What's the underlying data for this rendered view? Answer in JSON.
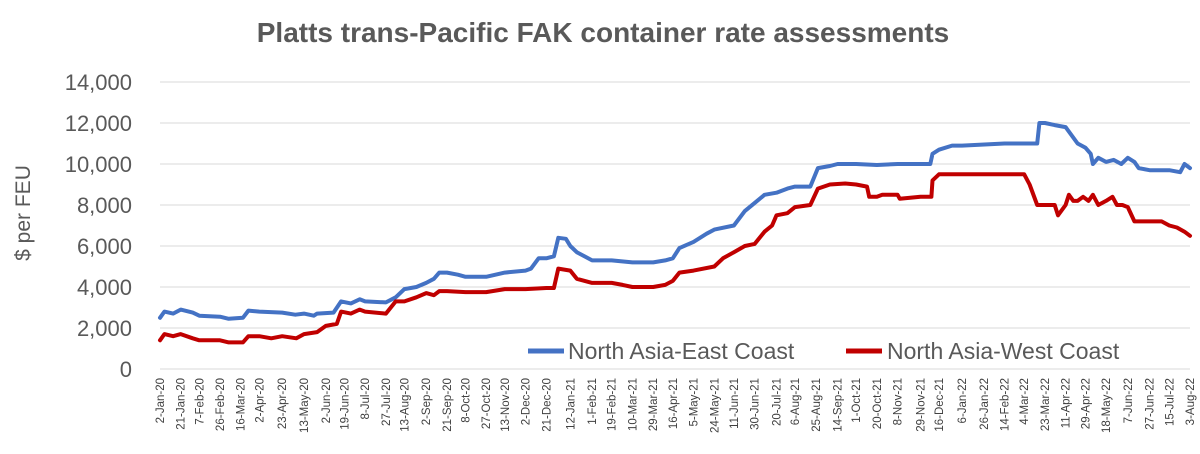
{
  "chart_data": {
    "type": "line",
    "title": "Platts trans-Pacific FAK container rate assessments",
    "ylabel": "$ per FEU",
    "xlabel": "",
    "ylim": [
      0,
      14000
    ],
    "y_ticks": [
      "0",
      "2,000",
      "4,000",
      "6,000",
      "8,000",
      "10,000",
      "12,000",
      "14,000"
    ],
    "y_tick_values": [
      0,
      2000,
      4000,
      6000,
      8000,
      10000,
      12000,
      14000
    ],
    "x_range": [
      "2020-01-02",
      "2022-08-03"
    ],
    "x_ticks": [
      {
        "label": "2-Jan-20",
        "date": "2020-01-02"
      },
      {
        "label": "21-Jan-20",
        "date": "2020-01-21"
      },
      {
        "label": "7-Feb-20",
        "date": "2020-02-07"
      },
      {
        "label": "26-Feb-20",
        "date": "2020-02-26"
      },
      {
        "label": "16-Mar-20",
        "date": "2020-03-16"
      },
      {
        "label": "2-Apr-20",
        "date": "2020-04-02"
      },
      {
        "label": "23-Apr-20",
        "date": "2020-04-23"
      },
      {
        "label": "13-May-20",
        "date": "2020-05-13"
      },
      {
        "label": "2-Jun-20",
        "date": "2020-06-02"
      },
      {
        "label": "19-Jun-20",
        "date": "2020-06-19"
      },
      {
        "label": "8-Jul-20",
        "date": "2020-07-08"
      },
      {
        "label": "27-Jul-20",
        "date": "2020-07-27"
      },
      {
        "label": "13-Aug-20",
        "date": "2020-08-13"
      },
      {
        "label": "2-Sep-20",
        "date": "2020-09-02"
      },
      {
        "label": "21-Sep-20",
        "date": "2020-09-21"
      },
      {
        "label": "8-Oct-20",
        "date": "2020-10-08"
      },
      {
        "label": "27-Oct-20",
        "date": "2020-10-27"
      },
      {
        "label": "13-Nov-20",
        "date": "2020-11-13"
      },
      {
        "label": "2-Dec-20",
        "date": "2020-12-02"
      },
      {
        "label": "21-Dec-20",
        "date": "2020-12-21"
      },
      {
        "label": "12-Jan-21",
        "date": "2021-01-12"
      },
      {
        "label": "1-Feb-21",
        "date": "2021-02-01"
      },
      {
        "label": "19-Feb-21",
        "date": "2021-02-19"
      },
      {
        "label": "10-Mar-21",
        "date": "2021-03-10"
      },
      {
        "label": "29-Mar-21",
        "date": "2021-03-29"
      },
      {
        "label": "16-Apr-21",
        "date": "2021-04-16"
      },
      {
        "label": "5-May-21",
        "date": "2021-05-05"
      },
      {
        "label": "24-May-21",
        "date": "2021-05-24"
      },
      {
        "label": "11-Jun-21",
        "date": "2021-06-11"
      },
      {
        "label": "30-Jun-21",
        "date": "2021-06-30"
      },
      {
        "label": "20-Jul-21",
        "date": "2021-07-20"
      },
      {
        "label": "6-Aug-21",
        "date": "2021-08-06"
      },
      {
        "label": "25-Aug-21",
        "date": "2021-08-25"
      },
      {
        "label": "14-Sep-21",
        "date": "2021-09-14"
      },
      {
        "label": "1-Oct-21",
        "date": "2021-10-01"
      },
      {
        "label": "20-Oct-21",
        "date": "2021-10-20"
      },
      {
        "label": "8-Nov-21",
        "date": "2021-11-08"
      },
      {
        "label": "29-Nov-21",
        "date": "2021-11-29"
      },
      {
        "label": "16-Dec-21",
        "date": "2021-12-16"
      },
      {
        "label": "6-Jan-22",
        "date": "2022-01-06"
      },
      {
        "label": "26-Jan-22",
        "date": "2022-01-26"
      },
      {
        "label": "14-Feb-22",
        "date": "2022-02-14"
      },
      {
        "label": "4-Mar-22",
        "date": "2022-03-04"
      },
      {
        "label": "23-Mar-22",
        "date": "2022-03-23"
      },
      {
        "label": "11-Apr-22",
        "date": "2022-04-11"
      },
      {
        "label": "29-Apr-22",
        "date": "2022-04-29"
      },
      {
        "label": "18-May-22",
        "date": "2022-05-18"
      },
      {
        "label": "7-Jun-22",
        "date": "2022-06-07"
      },
      {
        "label": "27-Jun-22",
        "date": "2022-06-27"
      },
      {
        "label": "15-Jul-22",
        "date": "2022-07-15"
      },
      {
        "label": "3-Aug-22",
        "date": "2022-08-03"
      }
    ],
    "grid": "horizontal",
    "legend_position": "bottom-right",
    "series": [
      {
        "name": "North Asia-East Coast",
        "color": "#4472c4",
        "points": [
          [
            "2020-01-02",
            2500
          ],
          [
            "2020-01-06",
            2800
          ],
          [
            "2020-01-14",
            2700
          ],
          [
            "2020-01-21",
            2900
          ],
          [
            "2020-02-01",
            2750
          ],
          [
            "2020-02-07",
            2600
          ],
          [
            "2020-02-26",
            2550
          ],
          [
            "2020-03-05",
            2450
          ],
          [
            "2020-03-18",
            2500
          ],
          [
            "2020-03-23",
            2850
          ],
          [
            "2020-04-02",
            2800
          ],
          [
            "2020-04-23",
            2750
          ],
          [
            "2020-05-05",
            2650
          ],
          [
            "2020-05-13",
            2700
          ],
          [
            "2020-05-22",
            2600
          ],
          [
            "2020-05-25",
            2700
          ],
          [
            "2020-06-09",
            2750
          ],
          [
            "2020-06-16",
            3300
          ],
          [
            "2020-06-25",
            3200
          ],
          [
            "2020-07-03",
            3400
          ],
          [
            "2020-07-08",
            3300
          ],
          [
            "2020-07-27",
            3250
          ],
          [
            "2020-08-05",
            3500
          ],
          [
            "2020-08-13",
            3900
          ],
          [
            "2020-08-24",
            4000
          ],
          [
            "2020-09-02",
            4200
          ],
          [
            "2020-09-09",
            4400
          ],
          [
            "2020-09-14",
            4700
          ],
          [
            "2020-09-21",
            4700
          ],
          [
            "2020-10-01",
            4600
          ],
          [
            "2020-10-08",
            4500
          ],
          [
            "2020-10-27",
            4500
          ],
          [
            "2020-11-13",
            4700
          ],
          [
            "2020-12-02",
            4800
          ],
          [
            "2020-12-07",
            4900
          ],
          [
            "2020-12-14",
            5400
          ],
          [
            "2020-12-21",
            5400
          ],
          [
            "2020-12-28",
            5500
          ],
          [
            "2021-01-01",
            6400
          ],
          [
            "2021-01-08",
            6350
          ],
          [
            "2021-01-12",
            6000
          ],
          [
            "2021-01-18",
            5700
          ],
          [
            "2021-01-25",
            5500
          ],
          [
            "2021-02-01",
            5300
          ],
          [
            "2021-02-19",
            5300
          ],
          [
            "2021-03-10",
            5200
          ],
          [
            "2021-03-29",
            5200
          ],
          [
            "2021-04-09",
            5300
          ],
          [
            "2021-04-16",
            5400
          ],
          [
            "2021-04-22",
            5900
          ],
          [
            "2021-05-05",
            6200
          ],
          [
            "2021-05-17",
            6600
          ],
          [
            "2021-05-24",
            6800
          ],
          [
            "2021-06-11",
            7000
          ],
          [
            "2021-06-21",
            7700
          ],
          [
            "2021-06-30",
            8100
          ],
          [
            "2021-07-09",
            8500
          ],
          [
            "2021-07-20",
            8600
          ],
          [
            "2021-07-30",
            8800
          ],
          [
            "2021-08-06",
            8900
          ],
          [
            "2021-08-20",
            8900
          ],
          [
            "2021-08-27",
            9800
          ],
          [
            "2021-09-07",
            9900
          ],
          [
            "2021-09-14",
            10000
          ],
          [
            "2021-10-01",
            10000
          ],
          [
            "2021-10-20",
            9950
          ],
          [
            "2021-11-08",
            10000
          ],
          [
            "2021-11-29",
            10000
          ],
          [
            "2021-12-08",
            10000
          ],
          [
            "2021-12-10",
            10500
          ],
          [
            "2021-12-16",
            10700
          ],
          [
            "2021-12-28",
            10900
          ],
          [
            "2022-01-06",
            10900
          ],
          [
            "2022-02-14",
            11000
          ],
          [
            "2022-03-04",
            11000
          ],
          [
            "2022-03-16",
            11000
          ],
          [
            "2022-03-18",
            12000
          ],
          [
            "2022-03-23",
            12000
          ],
          [
            "2022-04-01",
            11900
          ],
          [
            "2022-04-11",
            11800
          ],
          [
            "2022-04-22",
            11000
          ],
          [
            "2022-04-29",
            10800
          ],
          [
            "2022-05-04",
            10500
          ],
          [
            "2022-05-06",
            10000
          ],
          [
            "2022-05-11",
            10300
          ],
          [
            "2022-05-18",
            10100
          ],
          [
            "2022-05-25",
            10200
          ],
          [
            "2022-06-01",
            10000
          ],
          [
            "2022-06-07",
            10300
          ],
          [
            "2022-06-13",
            10100
          ],
          [
            "2022-06-17",
            9800
          ],
          [
            "2022-06-27",
            9700
          ],
          [
            "2022-07-15",
            9700
          ],
          [
            "2022-07-25",
            9600
          ],
          [
            "2022-07-29",
            10000
          ],
          [
            "2022-08-03",
            9800
          ]
        ]
      },
      {
        "name": "North Asia-West Coast",
        "color": "#c00000",
        "points": [
          [
            "2020-01-02",
            1400
          ],
          [
            "2020-01-06",
            1700
          ],
          [
            "2020-01-14",
            1600
          ],
          [
            "2020-01-21",
            1700
          ],
          [
            "2020-02-01",
            1500
          ],
          [
            "2020-02-07",
            1400
          ],
          [
            "2020-02-26",
            1400
          ],
          [
            "2020-03-05",
            1300
          ],
          [
            "2020-03-18",
            1300
          ],
          [
            "2020-03-23",
            1600
          ],
          [
            "2020-04-02",
            1600
          ],
          [
            "2020-04-13",
            1500
          ],
          [
            "2020-04-23",
            1600
          ],
          [
            "2020-05-06",
            1500
          ],
          [
            "2020-05-13",
            1700
          ],
          [
            "2020-05-25",
            1800
          ],
          [
            "2020-06-02",
            2100
          ],
          [
            "2020-06-12",
            2200
          ],
          [
            "2020-06-16",
            2800
          ],
          [
            "2020-06-25",
            2700
          ],
          [
            "2020-07-03",
            2900
          ],
          [
            "2020-07-08",
            2800
          ],
          [
            "2020-07-27",
            2700
          ],
          [
            "2020-08-05",
            3300
          ],
          [
            "2020-08-13",
            3300
          ],
          [
            "2020-08-24",
            3500
          ],
          [
            "2020-09-02",
            3700
          ],
          [
            "2020-09-09",
            3600
          ],
          [
            "2020-09-14",
            3800
          ],
          [
            "2020-09-21",
            3800
          ],
          [
            "2020-10-08",
            3750
          ],
          [
            "2020-10-27",
            3750
          ],
          [
            "2020-11-13",
            3900
          ],
          [
            "2020-12-02",
            3900
          ],
          [
            "2020-12-21",
            3950
          ],
          [
            "2020-12-28",
            3950
          ],
          [
            "2021-01-01",
            4900
          ],
          [
            "2021-01-12",
            4800
          ],
          [
            "2021-01-18",
            4400
          ],
          [
            "2021-02-01",
            4200
          ],
          [
            "2021-02-19",
            4200
          ],
          [
            "2021-03-01",
            4100
          ],
          [
            "2021-03-10",
            4000
          ],
          [
            "2021-03-29",
            4000
          ],
          [
            "2021-04-09",
            4100
          ],
          [
            "2021-04-16",
            4300
          ],
          [
            "2021-04-22",
            4700
          ],
          [
            "2021-05-05",
            4800
          ],
          [
            "2021-05-24",
            5000
          ],
          [
            "2021-06-01",
            5400
          ],
          [
            "2021-06-11",
            5700
          ],
          [
            "2021-06-21",
            6000
          ],
          [
            "2021-06-30",
            6100
          ],
          [
            "2021-07-09",
            6700
          ],
          [
            "2021-07-16",
            7000
          ],
          [
            "2021-07-20",
            7500
          ],
          [
            "2021-07-30",
            7600
          ],
          [
            "2021-08-06",
            7900
          ],
          [
            "2021-08-20",
            8000
          ],
          [
            "2021-08-27",
            8800
          ],
          [
            "2021-09-07",
            9000
          ],
          [
            "2021-09-21",
            9050
          ],
          [
            "2021-10-01",
            9000
          ],
          [
            "2021-10-11",
            8900
          ],
          [
            "2021-10-13",
            8400
          ],
          [
            "2021-10-20",
            8400
          ],
          [
            "2021-10-25",
            8500
          ],
          [
            "2021-11-08",
            8500
          ],
          [
            "2021-11-10",
            8300
          ],
          [
            "2021-11-29",
            8400
          ],
          [
            "2021-12-09",
            8400
          ],
          [
            "2021-12-10",
            9200
          ],
          [
            "2021-12-16",
            9500
          ],
          [
            "2022-01-06",
            9500
          ],
          [
            "2022-02-14",
            9500
          ],
          [
            "2022-03-04",
            9500
          ],
          [
            "2022-03-09",
            9000
          ],
          [
            "2022-03-16",
            8000
          ],
          [
            "2022-03-23",
            8000
          ],
          [
            "2022-04-01",
            8000
          ],
          [
            "2022-04-04",
            7500
          ],
          [
            "2022-04-11",
            8000
          ],
          [
            "2022-04-14",
            8500
          ],
          [
            "2022-04-18",
            8200
          ],
          [
            "2022-04-22",
            8200
          ],
          [
            "2022-04-27",
            8400
          ],
          [
            "2022-05-02",
            8200
          ],
          [
            "2022-05-06",
            8500
          ],
          [
            "2022-05-11",
            8000
          ],
          [
            "2022-05-18",
            8200
          ],
          [
            "2022-05-24",
            8400
          ],
          [
            "2022-05-28",
            8000
          ],
          [
            "2022-06-02",
            8000
          ],
          [
            "2022-06-07",
            7900
          ],
          [
            "2022-06-13",
            7200
          ],
          [
            "2022-06-27",
            7200
          ],
          [
            "2022-07-08",
            7200
          ],
          [
            "2022-07-15",
            7000
          ],
          [
            "2022-07-22",
            6900
          ],
          [
            "2022-07-29",
            6700
          ],
          [
            "2022-08-03",
            6500
          ]
        ]
      }
    ]
  }
}
